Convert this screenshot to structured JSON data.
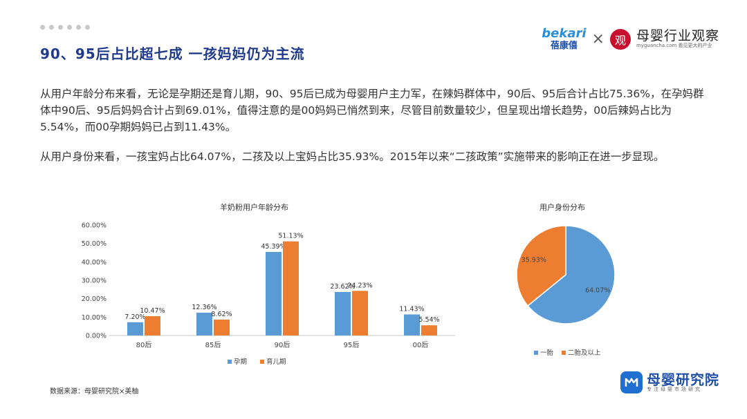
{
  "header": {
    "title": "90、95后占比超七成 一孩妈妈仍为主流",
    "logo_bekari_top": "bekari",
    "logo_bekari_bottom": "蓓康僖",
    "logo_times": "×",
    "logo_mg_seal": "观",
    "logo_mg_name": "母婴行业观察",
    "logo_mg_sub": "myguancha.com 看见更大的产业"
  },
  "paragraphs": [
    "从用户年龄分布来看，无论是孕期还是育儿期，90、95后已成为母婴用户主力军，在辣妈群体中，90后、95后合计占比75.36%，在孕妈群体中90后、95后妈妈合计占到69.01%，值得注意的是00妈妈已悄然到来，尽管目前数量较少，但呈现出增长趋势，00后辣妈占比为5.54%，而00孕期妈妈已占到11.43%。",
    "从用户身份来看，一孩宝妈占比64.07%，二孩及以上宝妈占比35.93%。2015年以来“二孩政策”实施带来的影响正在进一步显现。"
  ],
  "chart_data": [
    {
      "type": "bar",
      "title": "羊奶粉用户年龄分布",
      "categories": [
        "80后",
        "85后",
        "90后",
        "95后",
        "00后"
      ],
      "series": [
        {
          "name": "孕期",
          "values": [
            7.2,
            12.36,
            45.39,
            23.62,
            11.43
          ],
          "labels": [
            "7.20%",
            "12.36%",
            "45.39%",
            "23.62%",
            "11.43%"
          ],
          "color": "#5b9bd5"
        },
        {
          "name": "育儿期",
          "values": [
            10.47,
            8.62,
            51.13,
            24.23,
            5.54
          ],
          "labels": [
            "10.47%",
            "8.62%",
            "51.13%",
            "24.23%",
            "5.54%"
          ],
          "color": "#ed7d31"
        }
      ],
      "ylim": [
        0,
        60
      ],
      "yticks": [
        "0.00%",
        "10.00%",
        "20.00%",
        "30.00%",
        "40.00%",
        "50.00%",
        "60.00%"
      ],
      "legend": "bottom"
    },
    {
      "type": "pie",
      "title": "用户身份分布",
      "slices": [
        {
          "name": "一胎",
          "value": 64.07,
          "label": "64.07%",
          "color": "#5b9bd5"
        },
        {
          "name": "二胎及以上",
          "value": 35.93,
          "label": "35.93%",
          "color": "#ed7d31"
        }
      ],
      "legend": "bottom"
    }
  ],
  "footer": {
    "source": "数据来源：母婴研究院×美柚",
    "brand_name": "母婴研究院",
    "brand_sub": "专注母婴市场研究"
  }
}
